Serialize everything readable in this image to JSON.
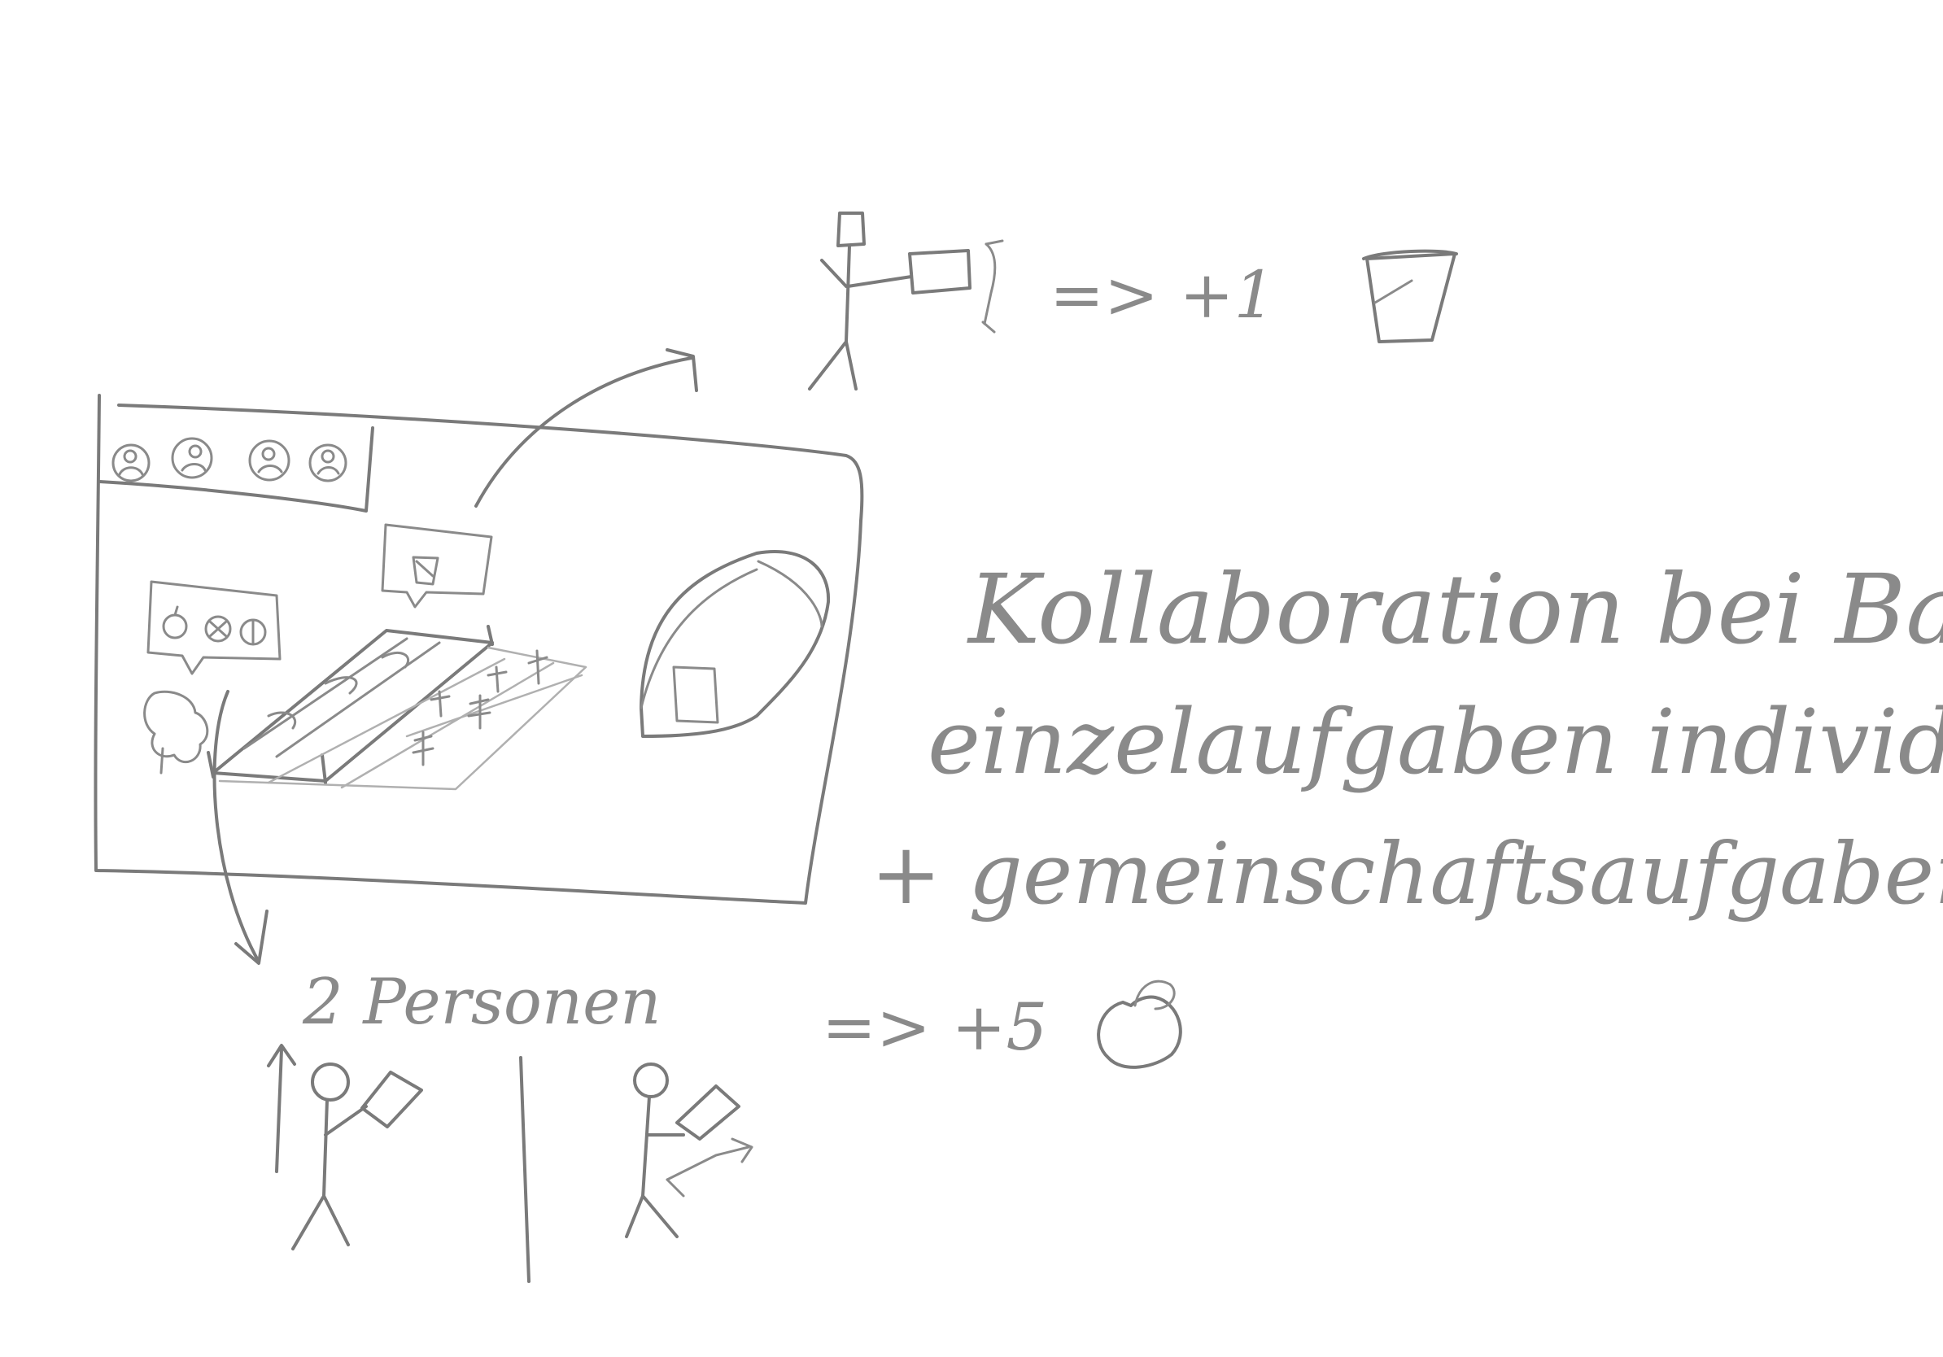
{
  "notes": {
    "title_line": "Kollaboration bei Bauernhof",
    "line2": "einzelaufgaben individuell",
    "line3": "+ gemeinschaftsaufgaben"
  },
  "individual_task": {
    "result": "=> +1",
    "reward_icon": "bucket-icon"
  },
  "group_task": {
    "persons_label": "2 Personen",
    "result": "=> +5",
    "reward_icon": "apple-icon"
  },
  "farm_screen": {
    "player_avatars": [
      "avatar-icon",
      "avatar-icon",
      "avatar-icon",
      "avatar-icon"
    ],
    "greenhouse": "greenhouse-icon",
    "apple_tree": "apple-tree-icon",
    "field": "crop-field-icon"
  },
  "colors": {
    "pencil": "#7a7a7a",
    "paper": "#ffffff"
  }
}
